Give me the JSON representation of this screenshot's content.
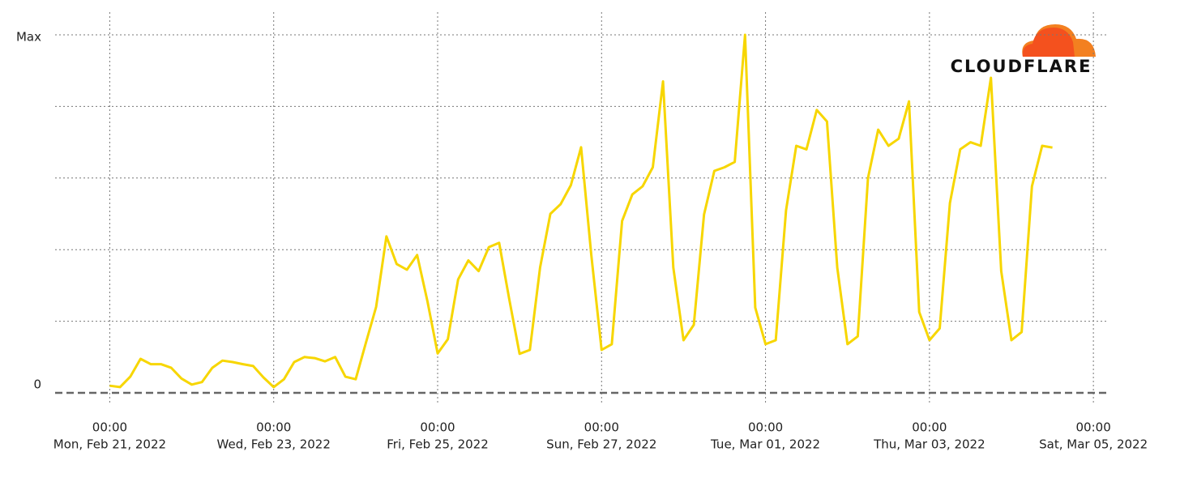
{
  "chart_data": {
    "type": "line",
    "x": [
      "2022-02-21T00:00",
      "2022-02-21T03:00",
      "2022-02-21T06:00",
      "2022-02-21T09:00",
      "2022-02-21T12:00",
      "2022-02-21T15:00",
      "2022-02-21T18:00",
      "2022-02-21T21:00",
      "2022-02-22T00:00",
      "2022-02-22T03:00",
      "2022-02-22T06:00",
      "2022-02-22T09:00",
      "2022-02-22T12:00",
      "2022-02-22T15:00",
      "2022-02-22T18:00",
      "2022-02-22T21:00",
      "2022-02-23T00:00",
      "2022-02-23T03:00",
      "2022-02-23T06:00",
      "2022-02-23T09:00",
      "2022-02-23T12:00",
      "2022-02-23T15:00",
      "2022-02-23T18:00",
      "2022-02-23T21:00",
      "2022-02-24T00:00",
      "2022-02-24T03:00",
      "2022-02-24T06:00",
      "2022-02-24T09:00",
      "2022-02-24T12:00",
      "2022-02-24T15:00",
      "2022-02-24T18:00",
      "2022-02-24T21:00",
      "2022-02-25T00:00",
      "2022-02-25T03:00",
      "2022-02-25T06:00",
      "2022-02-25T09:00",
      "2022-02-25T12:00",
      "2022-02-25T15:00",
      "2022-02-25T18:00",
      "2022-02-25T21:00",
      "2022-02-26T00:00",
      "2022-02-26T03:00",
      "2022-02-26T06:00",
      "2022-02-26T09:00",
      "2022-02-26T12:00",
      "2022-02-26T15:00",
      "2022-02-26T18:00",
      "2022-02-26T21:00",
      "2022-02-27T00:00",
      "2022-02-27T03:00",
      "2022-02-27T06:00",
      "2022-02-27T09:00",
      "2022-02-27T12:00",
      "2022-02-27T15:00",
      "2022-02-27T18:00",
      "2022-02-27T21:00",
      "2022-02-28T00:00",
      "2022-02-28T03:00",
      "2022-02-28T06:00",
      "2022-02-28T09:00",
      "2022-02-28T12:00",
      "2022-02-28T15:00",
      "2022-02-28T18:00",
      "2022-02-28T21:00",
      "2022-03-01T00:00",
      "2022-03-01T03:00",
      "2022-03-01T06:00",
      "2022-03-01T09:00",
      "2022-03-01T12:00",
      "2022-03-01T15:00",
      "2022-03-01T18:00",
      "2022-03-01T21:00",
      "2022-03-02T00:00",
      "2022-03-02T03:00",
      "2022-03-02T06:00",
      "2022-03-02T09:00",
      "2022-03-02T12:00",
      "2022-03-02T15:00",
      "2022-03-02T18:00",
      "2022-03-02T21:00",
      "2022-03-03T00:00",
      "2022-03-03T03:00",
      "2022-03-03T06:00",
      "2022-03-03T09:00",
      "2022-03-03T12:00",
      "2022-03-03T15:00",
      "2022-03-03T18:00",
      "2022-03-03T21:00",
      "2022-03-04T00:00",
      "2022-03-04T03:00",
      "2022-03-04T06:00",
      "2022-03-04T09:00",
      "2022-03-04T12:00"
    ],
    "series": [
      {
        "color": "#f7d600",
        "values": [
          2,
          1.6,
          4.5,
          9.5,
          8,
          8,
          7,
          4,
          2.3,
          3,
          7,
          9,
          8.6,
          8,
          7.5,
          4.3,
          1.6,
          3.8,
          8.6,
          10,
          9.7,
          8.8,
          10,
          4.5,
          3.8,
          14,
          24,
          43.7,
          36,
          34.4,
          38.5,
          25.6,
          11,
          15,
          31.7,
          37,
          34,
          40.7,
          41.9,
          26,
          10.9,
          12,
          35,
          50,
          52.7,
          58,
          68.6,
          38.5,
          12,
          13.6,
          48,
          55.4,
          57.7,
          63,
          87,
          35,
          14.7,
          19,
          49.8,
          62,
          63,
          64.5,
          100,
          23.8,
          13.6,
          14.7,
          51,
          69,
          68,
          79,
          75.8,
          35,
          13.6,
          15.8,
          60,
          73.5,
          69,
          71,
          81.4,
          22.6,
          14.7,
          18,
          53,
          68,
          70,
          69,
          88,
          34,
          14.7,
          17,
          57.7,
          69,
          68.5
        ]
      }
    ],
    "xlim": [
      "2022-02-20T08:00",
      "2022-03-05T04:00"
    ],
    "xticks": [
      {
        "value": "2022-02-21T00:00",
        "label": [
          "00:00",
          "Mon, Feb 21, 2022"
        ]
      },
      {
        "value": "2022-02-23T00:00",
        "label": [
          "00:00",
          "Wed, Feb 23, 2022"
        ]
      },
      {
        "value": "2022-02-25T00:00",
        "label": [
          "00:00",
          "Fri, Feb 25, 2022"
        ]
      },
      {
        "value": "2022-02-27T00:00",
        "label": [
          "00:00",
          "Sun, Feb 27, 2022"
        ]
      },
      {
        "value": "2022-03-01T00:00",
        "label": [
          "00:00",
          "Tue, Mar 01, 2022"
        ]
      },
      {
        "value": "2022-03-03T00:00",
        "label": [
          "00:00",
          "Thu, Mar 03, 2022"
        ]
      },
      {
        "value": "2022-03-05T00:00",
        "label": [
          "00:00",
          "Sat, Mar 05, 2022"
        ]
      }
    ],
    "ylim": [
      0,
      100
    ],
    "yticks": [
      0,
      {
        "value": 100,
        "label": "Max"
      }
    ],
    "y_grid_lines": [
      20,
      40,
      60,
      80,
      100
    ],
    "grid": true
  },
  "logo": "CLOUDFLARE"
}
